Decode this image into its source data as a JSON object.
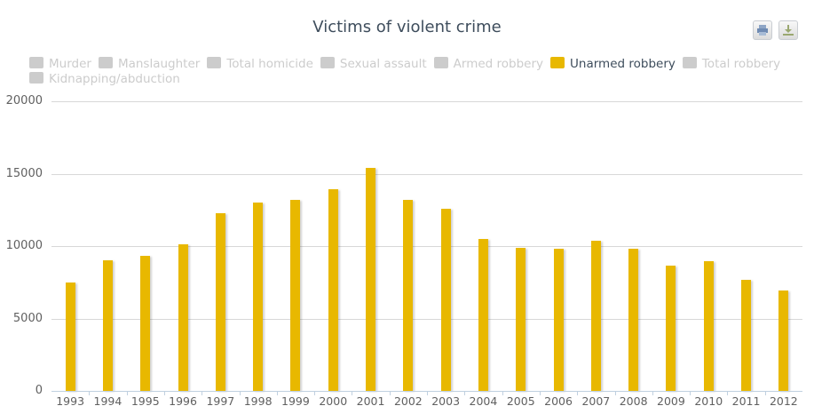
{
  "header": {
    "title": "Victims of violent crime",
    "print_button": "print-icon",
    "download_button": "download-icon"
  },
  "legend": [
    {
      "label": "Murder",
      "active": false,
      "color": "#cccccc"
    },
    {
      "label": "Manslaughter",
      "active": false,
      "color": "#cccccc"
    },
    {
      "label": "Total homicide",
      "active": false,
      "color": "#cccccc"
    },
    {
      "label": "Sexual assault",
      "active": false,
      "color": "#cccccc"
    },
    {
      "label": "Armed robbery",
      "active": false,
      "color": "#cccccc"
    },
    {
      "label": "Unarmed robbery",
      "active": true,
      "color": "#e8b800"
    },
    {
      "label": "Total robbery",
      "active": false,
      "color": "#cccccc"
    },
    {
      "label": "Kidnapping/abduction",
      "active": false,
      "color": "#cccccc"
    }
  ],
  "colors": {
    "series": "#e8b800",
    "inactive": "#cccccc",
    "title": "#3e4d5c",
    "grid": "#d8d8d8"
  },
  "chart_data": {
    "type": "bar",
    "title": "Victims of violent crime",
    "xlabel": "",
    "ylabel": "",
    "ylim": [
      0,
      20000
    ],
    "yticks": [
      0,
      5000,
      10000,
      15000,
      20000
    ],
    "grid": true,
    "legend_position": "top",
    "categories": [
      "1993",
      "1994",
      "1995",
      "1996",
      "1997",
      "1998",
      "1999",
      "2000",
      "2001",
      "2002",
      "2003",
      "2004",
      "2005",
      "2006",
      "2007",
      "2008",
      "2009",
      "2010",
      "2011",
      "2012"
    ],
    "series": [
      {
        "name": "Murder",
        "visible": false,
        "values": []
      },
      {
        "name": "Manslaughter",
        "visible": false,
        "values": []
      },
      {
        "name": "Total homicide",
        "visible": false,
        "values": []
      },
      {
        "name": "Sexual assault",
        "visible": false,
        "values": []
      },
      {
        "name": "Armed robbery",
        "visible": false,
        "values": []
      },
      {
        "name": "Unarmed robbery",
        "visible": true,
        "color": "#e8b800",
        "values": [
          7500,
          9000,
          9300,
          10150,
          12300,
          13000,
          13200,
          13900,
          15400,
          13200,
          12600,
          10500,
          9900,
          9800,
          10350,
          9800,
          8650,
          8950,
          7650,
          6950
        ]
      },
      {
        "name": "Total robbery",
        "visible": false,
        "values": []
      },
      {
        "name": "Kidnapping/abduction",
        "visible": false,
        "values": []
      }
    ]
  }
}
